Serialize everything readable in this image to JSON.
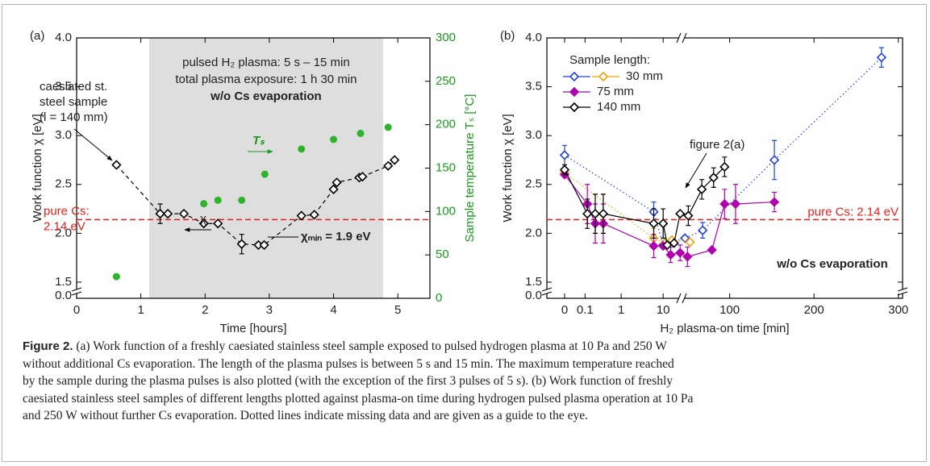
{
  "chart_data": [
    {
      "type": "scatter",
      "panel_label": "(a)",
      "xlabel": "Time [hours]",
      "ylabel": "Work function χ [eV]",
      "y2label": "Sample temperature Tₛ [°C]",
      "xlim": [
        0,
        5.5
      ],
      "xticks": [
        0,
        1,
        2,
        3,
        4,
        5
      ],
      "ylim": [
        1.45,
        4.0
      ],
      "yticks": [
        1.5,
        {
          "value": 2,
          "label": "2.0"
        },
        2.5,
        {
          "value": 3,
          "label": "3.0"
        },
        3.5,
        {
          "value": 4,
          "label": "4.0"
        }
      ],
      "ybreak_tick": {
        "value": 0,
        "label": "0.0"
      },
      "y2lim": [
        0,
        300
      ],
      "y2ticks": [
        0,
        50,
        100,
        150,
        200,
        250,
        300
      ],
      "y2color": "#1a9a1a",
      "series": [
        {
          "x": [
            0.62,
            1.3,
            1.42,
            1.67,
            1.98,
            2.2,
            2.57,
            2.83,
            2.92,
            3.5,
            3.7,
            4.0,
            4.05,
            4.4,
            4.45,
            4.85,
            4.95
          ],
          "values": [
            2.7,
            2.2,
            2.2,
            2.2,
            2.1,
            2.1,
            1.89,
            1.88,
            1.88,
            2.18,
            2.19,
            2.45,
            2.52,
            2.57,
            2.58,
            2.69,
            2.75
          ],
          "errors": [
            null,
            0.1,
            null,
            null,
            null,
            null,
            0.1,
            null,
            null,
            null,
            null,
            null,
            null,
            null,
            null,
            null,
            null
          ],
          "color": "#000000",
          "marker": "open-diamond",
          "line": "dashed"
        },
        {
          "x": [
            0.62,
            1.98,
            2.2,
            2.57,
            2.93,
            3.5,
            4.0,
            4.42,
            4.85
          ],
          "values": [
            25,
            109,
            113,
            113,
            143,
            172,
            183,
            190,
            197
          ],
          "color": "#2cb52c",
          "marker": "circle",
          "axis": "y2"
        }
      ],
      "reference_line": {
        "value": 2.14,
        "color": "#e8201a",
        "label_lines": [
          "pure Cs:",
          "2.14 eV"
        ]
      },
      "shaded_span": {
        "x": [
          1.13,
          4.77
        ],
        "color": "#dedede"
      },
      "annotations": {
        "shade_lines": [
          "pulsed H₂ plasma: 5 s – 15 min",
          "total plasma exposure: 1 h 30 min",
          "w/o Cs evaporation"
        ],
        "sample_lines": [
          "caesiated st.",
          "steel sample",
          "(l = 140 mm)"
        ],
        "chi": "χ",
        "ts": "Tₛ",
        "chi_min": "χₘᵢₙ = 1.9 eV"
      }
    },
    {
      "type": "line",
      "panel_label": "(b)",
      "xlabel": "H₂ plasma-on time [min]",
      "ylabel": "Work function χ [eV]",
      "xsegments": [
        {
          "xlim": [
            0,
            27
          ],
          "scale": "symlog",
          "xticks": [
            0,
            0.1,
            1,
            10
          ]
        },
        {
          "xlim": [
            43,
            305
          ],
          "scale": "linear",
          "xticks": [
            100,
            200,
            300
          ]
        }
      ],
      "ylim": [
        1.45,
        4.0
      ],
      "yticks": [
        1.5,
        {
          "value": 2,
          "label": "2.0"
        },
        2.5,
        {
          "value": 3,
          "label": "3.0"
        },
        3.5,
        {
          "value": 4,
          "label": "4.0"
        }
      ],
      "ybreak_tick": {
        "value": 0,
        "label": "0.0"
      },
      "legend_title": "Sample length:",
      "legend_position": "upper left",
      "legend": [
        {
          "label": "30 mm",
          "series": [
            0,
            1
          ]
        },
        {
          "label": "75 mm",
          "series": [
            2
          ]
        },
        {
          "label": "140 mm",
          "series": [
            3
          ]
        }
      ],
      "series": [
        {
          "x": [
            0,
            6,
            10,
            47,
            68,
            153,
            280
          ],
          "values": [
            2.8,
            2.22,
            1.88,
            1.95,
            2.03,
            2.75,
            3.8
          ],
          "errors": [
            0.1,
            0.1,
            null,
            null,
            0.08,
            0.2,
            0.1
          ],
          "color": "#2040e0",
          "marker": "open-diamond",
          "line": "dotted"
        },
        {
          "x": [
            0,
            6,
            11,
            16,
            53
          ],
          "values": [
            2.62,
            1.95,
            1.9,
            1.93,
            1.91
          ],
          "errors": [
            null,
            0.1,
            null,
            null,
            null
          ],
          "color": "#f5a000",
          "marker": "open-diamond",
          "line": "dotted"
        },
        {
          "x": [
            0,
            0.12,
            0.21,
            0.35,
            6,
            10,
            15,
            25,
            50,
            79,
            94,
            107,
            153
          ],
          "values": [
            2.6,
            2.3,
            2.1,
            2.1,
            1.87,
            1.87,
            1.78,
            1.8,
            1.76,
            1.83,
            2.3,
            2.3,
            2.32
          ],
          "errors": [
            null,
            0.2,
            0.2,
            0.2,
            0.12,
            null,
            0.08,
            0.08,
            0.1,
            null,
            0.15,
            0.2,
            0.1
          ],
          "color": "#b000b0",
          "marker": "filled-diamond",
          "line": "solid"
        },
        {
          "x": [
            0,
            0.12,
            0.21,
            0.35,
            6,
            10,
            12.5,
            18,
            25,
            51,
            67,
            81,
            94
          ],
          "values": [
            2.65,
            2.2,
            2.2,
            2.2,
            2.1,
            2.1,
            1.88,
            1.9,
            2.2,
            2.18,
            2.45,
            2.57,
            2.68
          ],
          "errors": [
            0.05,
            0.15,
            0.2,
            0.2,
            0.15,
            0.15,
            null,
            null,
            null,
            0.1,
            0.1,
            0.1,
            0.1
          ],
          "color": "#000000",
          "marker": "open-diamond",
          "line": "solid"
        }
      ],
      "reference_line": {
        "value": 2.14,
        "color": "#e8201a",
        "label": "pure Cs: 2.14 eV"
      },
      "annotations": {
        "figure_ref": "figure 2(a)",
        "condition": "w/o Cs evaporation"
      }
    }
  ],
  "caption": {
    "label": "Figure 2.",
    "lines": [
      " (a) Work function of a freshly caesiated stainless steel sample exposed to pulsed hydrogen plasma at 10 Pa and 250 W",
      "without additional Cs evaporation. The length of the plasma pulses is between 5 s and 15 min. The maximum temperature reached",
      "by the sample during the plasma pulses is also plotted (with the exception of the first 3 pulses of 5 s). (b) Work function of freshly",
      "caesiated stainless steel samples of different lengths plotted against plasma-on time during hydrogen pulsed plasma operation at 10 Pa",
      "and 250 W without further Cs evaporation. Dotted lines indicate missing data and are given as a guide to the eye."
    ]
  }
}
